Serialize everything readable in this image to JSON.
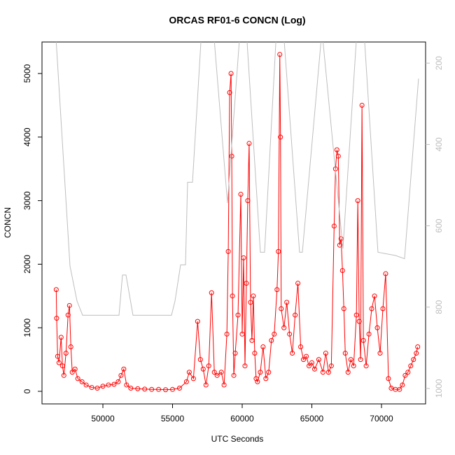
{
  "chart_data": {
    "type": "line",
    "title": "ORCAS RF01-6 CONCN (Log)",
    "x_label": "UTC Seconds",
    "y_label": "CONCN",
    "xlim": [
      45628,
      73166
    ],
    "xticks": [
      50000,
      55000,
      60000,
      65000,
      70000
    ],
    "ylim": [
      -198,
      5496
    ],
    "yticks": [
      0,
      1000,
      2000,
      3000,
      4000,
      5000
    ],
    "y2lim": [
      1038,
      148
    ],
    "y2ticks": [
      200,
      400,
      600,
      800,
      1000
    ],
    "series": [
      {
        "color": "#ff0000",
        "marker": "circle",
        "x": [
          46650,
          46680,
          46750,
          46850,
          47000,
          47100,
          47200,
          47350,
          47500,
          47600,
          47700,
          47800,
          48000,
          48200,
          48500,
          48800,
          49200,
          49600,
          50000,
          50400,
          50800,
          51100,
          51300,
          51500,
          51700,
          52000,
          52500,
          53000,
          53500,
          54000,
          54500,
          55000,
          55500,
          56000,
          56200,
          56500,
          56800,
          57000,
          57200,
          57400,
          57600,
          57800,
          58000,
          58200,
          58500,
          58700,
          58900,
          59000,
          59100,
          59200,
          59250,
          59300,
          59400,
          59500,
          59700,
          59900,
          60000,
          60100,
          60200,
          60300,
          60400,
          60500,
          60600,
          60700,
          60800,
          60900,
          61000,
          61100,
          61300,
          61500,
          61700,
          61900,
          62100,
          62300,
          62500,
          62600,
          62700,
          62750,
          62800,
          63000,
          63200,
          63400,
          63600,
          63800,
          64000,
          64200,
          64400,
          64600,
          64800,
          65000,
          65200,
          65500,
          65800,
          66000,
          66200,
          66400,
          66600,
          66700,
          66800,
          66900,
          67000,
          67100,
          67200,
          67300,
          67400,
          67600,
          67800,
          68000,
          68200,
          68300,
          68400,
          68500,
          68600,
          68700,
          68900,
          69100,
          69300,
          69500,
          69700,
          69900,
          70100,
          70300,
          70500,
          70700,
          71000,
          71300,
          71500,
          71700,
          71900,
          72100,
          72300,
          72500,
          72600
        ],
        "values": [
          1600,
          1150,
          550,
          450,
          850,
          400,
          250,
          600,
          1200,
          1350,
          700,
          300,
          350,
          200,
          150,
          100,
          60,
          50,
          80,
          100,
          110,
          150,
          250,
          350,
          100,
          50,
          40,
          35,
          30,
          30,
          25,
          30,
          50,
          150,
          300,
          200,
          1100,
          500,
          350,
          100,
          400,
          1550,
          300,
          250,
          300,
          100,
          900,
          2200,
          4700,
          5000,
          3700,
          1500,
          250,
          600,
          1200,
          3100,
          900,
          2100,
          400,
          1700,
          3000,
          3900,
          1400,
          800,
          1500,
          600,
          200,
          150,
          300,
          700,
          200,
          300,
          800,
          900,
          1600,
          2200,
          5300,
          4000,
          1300,
          1000,
          1400,
          900,
          600,
          1200,
          1700,
          700,
          500,
          550,
          400,
          450,
          350,
          500,
          300,
          600,
          300,
          400,
          2600,
          3500,
          3800,
          3700,
          2300,
          2400,
          1900,
          1300,
          600,
          300,
          500,
          400,
          1200,
          3000,
          1100,
          500,
          4500,
          800,
          400,
          900,
          1300,
          1500,
          1000,
          600,
          1300,
          1850,
          200,
          50,
          30,
          30,
          100,
          250,
          300,
          400,
          500,
          600,
          700
        ]
      },
      {
        "color": "#bebebe",
        "axis": "y2",
        "x": [
          46600,
          47638,
          48141,
          48543,
          51156,
          51407,
          51658,
          52160,
          54924,
          55176,
          55578,
          55930,
          56080,
          56432,
          57085,
          57939,
          58944,
          59848,
          60300,
          61305,
          61606,
          62460,
          62962,
          64118,
          64319,
          65726,
          67233,
          68239,
          68741,
          69746,
          71002,
          71655,
          72660
        ],
        "values": [
          120,
          699,
          785,
          820,
          820,
          721,
          721,
          820,
          820,
          785,
          696,
          696,
          493,
          493,
          120,
          120,
          544,
          120,
          120,
          665,
          665,
          120,
          120,
          665,
          665,
          120,
          656,
          120,
          120,
          665,
          673,
          681,
          238
        ]
      }
    ]
  }
}
